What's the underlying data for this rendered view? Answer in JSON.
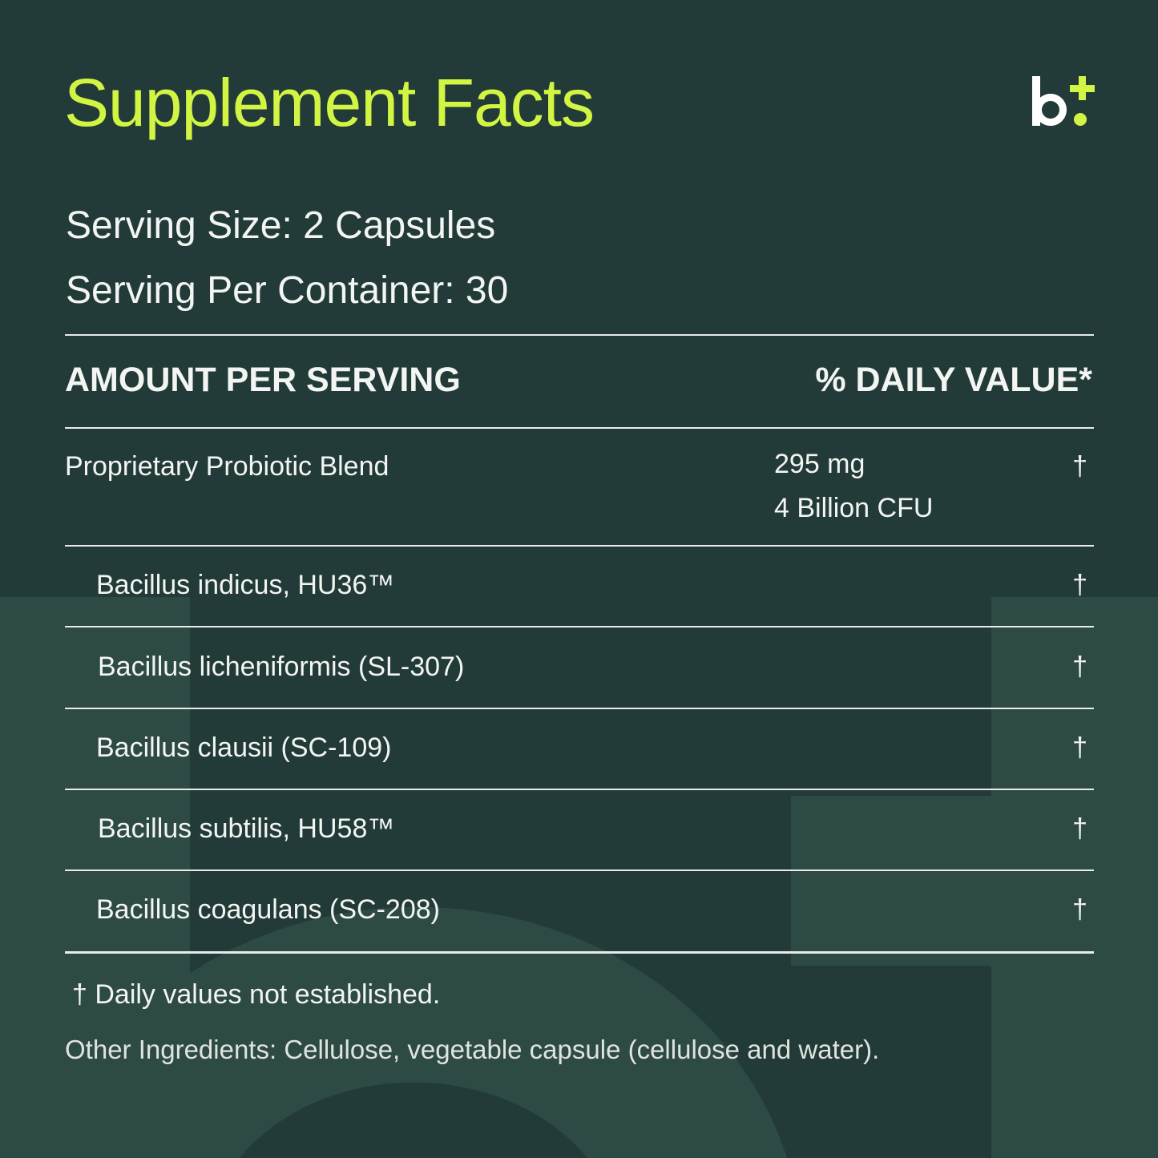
{
  "title": "Supplement Facts",
  "logo": {
    "text": "b+",
    "letter_color": "#ffffff",
    "accent_color": "#d2f442"
  },
  "serving_size": "Serving Size: 2 Capsules",
  "servings_per_container": "Serving Per Container: 30",
  "table": {
    "header_left": "AMOUNT PER SERVING",
    "header_right": "% DAILY VALUE*",
    "blend": {
      "name": "Proprietary Probiotic Blend",
      "amount": "295 mg",
      "cfu": "4 Billion CFU",
      "dv": "†"
    },
    "ingredients": [
      {
        "name": "Bacillus indicus, HU36™",
        "dv": "†"
      },
      {
        "name": "Bacillus licheniformis (SL-307)",
        "dv": "†"
      },
      {
        "name": "Bacillus clausii (SC-109)",
        "dv": "†"
      },
      {
        "name": "Bacillus subtilis, HU58™",
        "dv": "†"
      },
      {
        "name": "Bacillus coagulans (SC-208)",
        "dv": "†"
      }
    ]
  },
  "footnote": "† Daily values not established.",
  "other_ingredients": "Other Ingredients: Cellulose, vegetable capsule (cellulose and water).",
  "colors": {
    "background": "#223b38",
    "watermark": "#2e4a45",
    "accent": "#d2f442",
    "text": "#f3f5f2"
  }
}
